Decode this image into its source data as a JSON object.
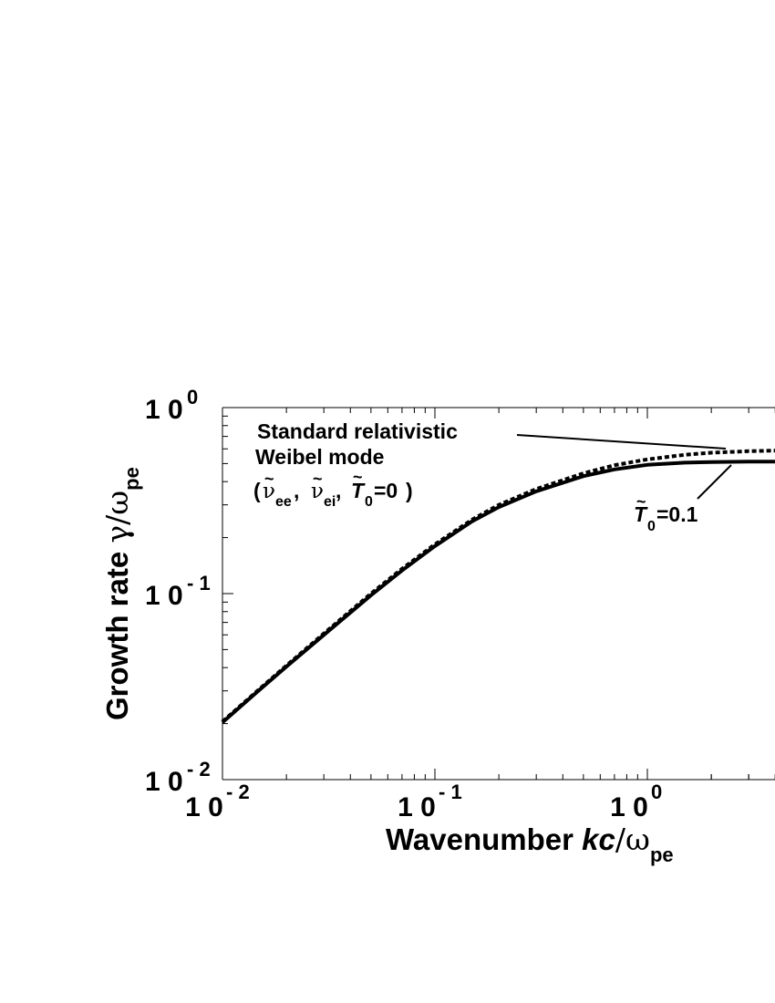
{
  "chart_data": {
    "type": "line",
    "xscale": "log",
    "yscale": "log",
    "xlim": [
      0.01,
      5
    ],
    "ylim": [
      0.01,
      1
    ],
    "grid": false,
    "x_ticks": [
      {
        "base": "1 0",
        "exp": "- 2",
        "value": 0.01
      },
      {
        "base": "1 0",
        "exp": "- 1",
        "value": 0.1
      },
      {
        "base": "1 0",
        "exp": "0",
        "value": 1
      }
    ],
    "y_ticks": [
      {
        "base": "1 0",
        "exp": "- 2",
        "value": 0.01
      },
      {
        "base": "1 0",
        "exp": "- 1",
        "value": 0.1
      },
      {
        "base": "1 0",
        "exp": "0",
        "value": 1
      }
    ],
    "xlabel": {
      "text": "Wavenumber ",
      "italic": "kc",
      "slash": "/",
      "greek": "ω",
      "sub": "pe"
    },
    "ylabel": {
      "text": "Growth rate ",
      "greek_gamma": "γ",
      "slash": "/",
      "greek": "ω",
      "sub": "pe"
    },
    "series": [
      {
        "style": "dashed",
        "color": "#000000",
        "x": [
          0.01,
          0.015,
          0.02,
          0.03,
          0.05,
          0.07,
          0.1,
          0.15,
          0.2,
          0.3,
          0.5,
          0.7,
          1.0,
          1.5,
          2.0,
          3.0,
          5.0
        ],
        "y": [
          0.0205,
          0.0308,
          0.041,
          0.061,
          0.1,
          0.136,
          0.184,
          0.25,
          0.3,
          0.365,
          0.443,
          0.49,
          0.527,
          0.557,
          0.572,
          0.583,
          0.59
        ]
      },
      {
        "style": "solid",
        "color": "#000000",
        "x": [
          0.01,
          0.015,
          0.02,
          0.03,
          0.05,
          0.07,
          0.1,
          0.15,
          0.2,
          0.3,
          0.5,
          0.7,
          1.0,
          1.5,
          2.0,
          3.0,
          5.0
        ],
        "y": [
          0.0203,
          0.0305,
          0.0405,
          0.06,
          0.098,
          0.133,
          0.18,
          0.245,
          0.292,
          0.355,
          0.428,
          0.465,
          0.492,
          0.506,
          0.51,
          0.512,
          0.512
        ]
      }
    ],
    "annotations": {
      "dashed_line1": "Standard  relativistic",
      "dashed_line2": "Weibel  mode",
      "dashed_params": {
        "open": "(",
        "nu": "ν",
        "ee": "ee",
        "comma1": ", ",
        "ei": "ei",
        "comma2": " ,",
        "T": "T",
        "zero_sub": "0",
        "eq": "=0",
        "close": ")",
        "tilde": "~"
      },
      "solid_label": {
        "T": "T",
        "sub": "0",
        "eq": "=0.1",
        "tilde": "~"
      }
    }
  }
}
